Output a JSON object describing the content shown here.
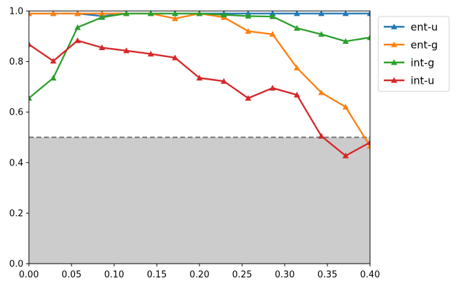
{
  "chart_data": {
    "type": "line",
    "title": "",
    "xlabel": "",
    "ylabel": "",
    "xlim": [
      0.0,
      0.4
    ],
    "ylim": [
      0.0,
      1.0
    ],
    "xticks": [
      "0.00",
      "0.05",
      "0.10",
      "0.15",
      "0.20",
      "0.25",
      "0.30",
      "0.35",
      "0.40"
    ],
    "yticks": [
      "0.0",
      "0.2",
      "0.4",
      "0.6",
      "0.8",
      "1.0"
    ],
    "grid": false,
    "legend_position": "outside-top-right",
    "threshold": {
      "y": 0.5,
      "style": "dashed",
      "color": "#808080",
      "shaded_below": true,
      "shade_color": "#cccccc"
    },
    "x": [
      0.0,
      0.0286,
      0.0571,
      0.0857,
      0.1143,
      0.1429,
      0.1714,
      0.2,
      0.2286,
      0.2571,
      0.2857,
      0.3143,
      0.3429,
      0.3714,
      0.4
    ],
    "series": [
      {
        "name": "ent-u",
        "color": "#1f77b4",
        "marker": "triangle",
        "values": [
          0.99,
          0.99,
          0.99,
          0.98,
          0.99,
          0.99,
          0.99,
          0.99,
          0.99,
          0.99,
          0.99,
          0.99,
          0.99,
          0.99,
          0.99
        ]
      },
      {
        "name": "ent-g",
        "color": "#ff7f0e",
        "marker": "triangle",
        "values": [
          0.99,
          0.99,
          0.99,
          0.99,
          0.99,
          0.99,
          0.97,
          0.99,
          0.975,
          0.92,
          0.908,
          0.775,
          0.677,
          0.62,
          0.465
        ]
      },
      {
        "name": "int-g",
        "color": "#2ca02c",
        "marker": "triangle",
        "values": [
          0.655,
          0.735,
          0.935,
          0.975,
          0.99,
          0.99,
          0.99,
          0.99,
          0.985,
          0.98,
          0.978,
          0.932,
          0.908,
          0.88,
          0.895
        ]
      },
      {
        "name": "int-u",
        "color": "#d62728",
        "marker": "triangle",
        "values": [
          0.868,
          0.802,
          0.883,
          0.855,
          0.843,
          0.83,
          0.815,
          0.735,
          0.722,
          0.655,
          0.695,
          0.668,
          0.505,
          0.427,
          0.48
        ]
      }
    ]
  }
}
